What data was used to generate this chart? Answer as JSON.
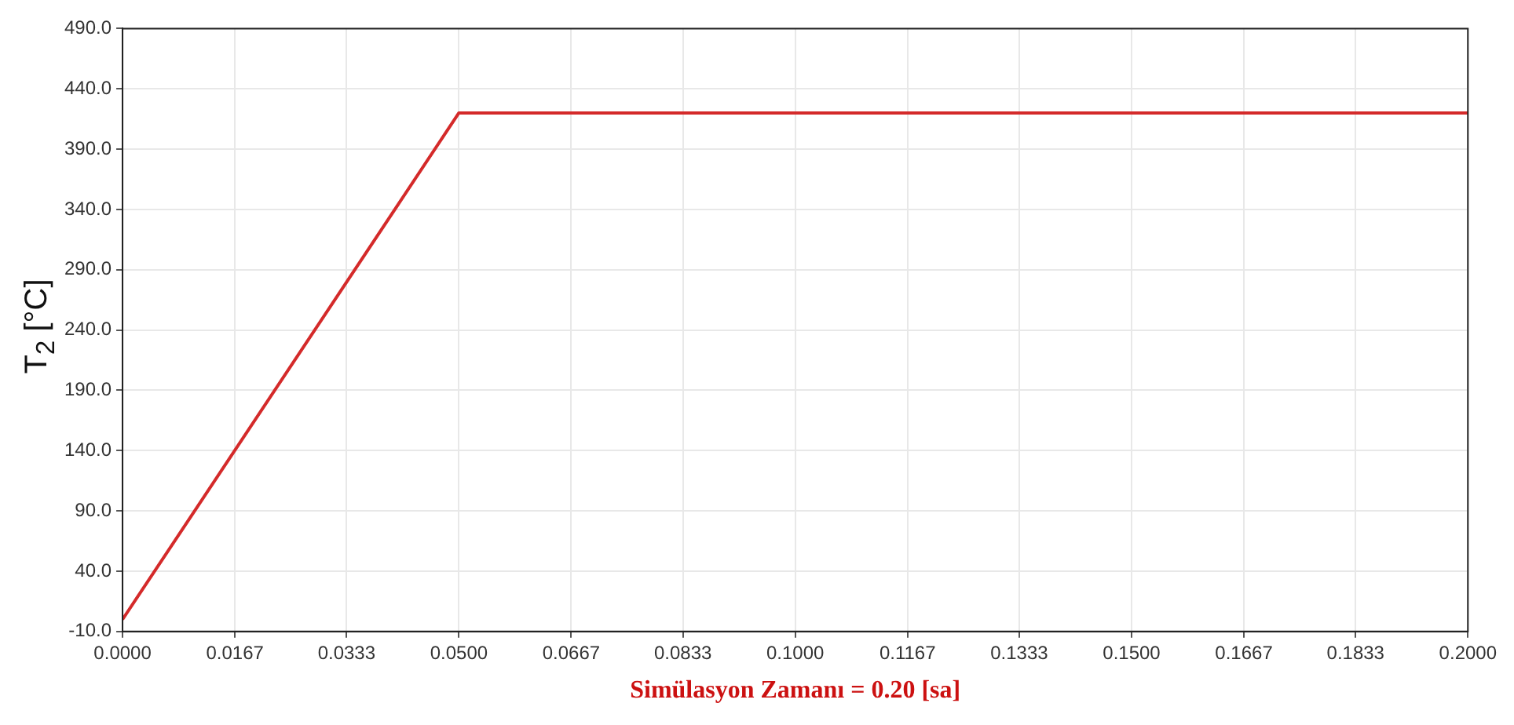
{
  "chart_data": {
    "type": "line",
    "xlabel": "Simülasyon Zamanı = 0.20 [sa]",
    "ylabel": "T$_{2}$ [°C]",
    "x": [
      0,
      0.05,
      0.2
    ],
    "series": [
      {
        "color": "#d42a2a",
        "values": [
          0,
          420,
          420
        ]
      }
    ],
    "xlim": [
      0,
      0.2
    ],
    "xticks": [
      {
        "value": 0,
        "label": "0.0000"
      },
      {
        "value": 0.0167,
        "label": "0.0167"
      },
      {
        "value": 0.0333,
        "label": "0.0333"
      },
      {
        "value": 0.05,
        "label": "0.0500"
      },
      {
        "value": 0.0667,
        "label": "0.0667"
      },
      {
        "value": 0.0833,
        "label": "0.0833"
      },
      {
        "value": 0.1,
        "label": "0.1000"
      },
      {
        "value": 0.1167,
        "label": "0.1167"
      },
      {
        "value": 0.1333,
        "label": "0.1333"
      },
      {
        "value": 0.15,
        "label": "0.1500"
      },
      {
        "value": 0.1667,
        "label": "0.1667"
      },
      {
        "value": 0.1833,
        "label": "0.1833"
      },
      {
        "value": 0.2,
        "label": "0.2000"
      }
    ],
    "ylim": [
      -10,
      490
    ],
    "yticks": [
      {
        "value": -10,
        "label": "-10.0"
      },
      {
        "value": 40,
        "label": "40.0"
      },
      {
        "value": 90,
        "label": "90.0"
      },
      {
        "value": 140,
        "label": "140.0"
      },
      {
        "value": 190,
        "label": "190.0"
      },
      {
        "value": 240,
        "label": "240.0"
      },
      {
        "value": 290,
        "label": "290.0"
      },
      {
        "value": 340,
        "label": "340.0"
      },
      {
        "value": 390,
        "label": "390.0"
      },
      {
        "value": 440,
        "label": "440.0"
      },
      {
        "value": 490,
        "label": "490.0"
      }
    ],
    "grid": true,
    "legend": false,
    "marker": "none",
    "line_style": "solid"
  }
}
